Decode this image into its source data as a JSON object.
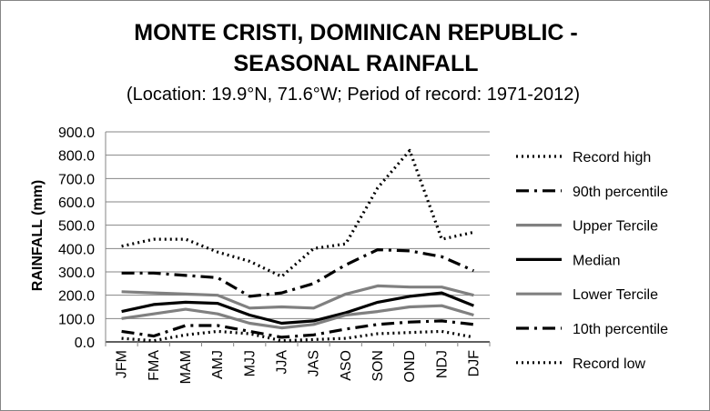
{
  "chart_data": {
    "type": "line",
    "title_line1": "MONTE CRISTI, DOMINICAN REPUBLIC -",
    "title_line2": "SEASONAL RAINFALL",
    "subtitle": "(Location: 19.9°N, 71.6°W; Period of record: 1971-2012)",
    "ylabel": "RAINFALL (mm)",
    "xlabel": "",
    "ylim": [
      0,
      900
    ],
    "yticks": [
      "0.0",
      "100.0",
      "200.0",
      "300.0",
      "400.0",
      "500.0",
      "600.0",
      "700.0",
      "800.0",
      "900.0"
    ],
    "categories": [
      "JFM",
      "FMA",
      "MAM",
      "AMJ",
      "MJJ",
      "JJA",
      "JAS",
      "ASO",
      "SON",
      "OND",
      "NDJ",
      "DJF"
    ],
    "grid": true,
    "legend_position": "right",
    "series": [
      {
        "name": "Record high",
        "style": "dotted",
        "color": "#000000",
        "values": [
          410,
          440,
          440,
          385,
          345,
          280,
          400,
          420,
          660,
          820,
          440,
          470
        ]
      },
      {
        "name": "90th percentile",
        "style": "dashdot",
        "color": "#000000",
        "values": [
          295,
          295,
          285,
          275,
          195,
          210,
          250,
          330,
          395,
          390,
          365,
          305
        ]
      },
      {
        "name": "Upper Tercile",
        "style": "solid",
        "color": "#808080",
        "values": [
          215,
          210,
          205,
          200,
          145,
          150,
          145,
          205,
          240,
          235,
          235,
          200
        ]
      },
      {
        "name": "Median",
        "style": "solid",
        "color": "#000000",
        "values": [
          130,
          160,
          170,
          165,
          115,
          80,
          90,
          125,
          170,
          195,
          210,
          155
        ]
      },
      {
        "name": "Lower Tercile",
        "style": "solid",
        "color": "#808080",
        "values": [
          100,
          120,
          140,
          120,
          80,
          60,
          75,
          115,
          130,
          150,
          155,
          115
        ]
      },
      {
        "name": "10th percentile",
        "style": "dashdot",
        "color": "#000000",
        "values": [
          45,
          25,
          70,
          70,
          45,
          20,
          30,
          55,
          75,
          85,
          90,
          75
        ]
      },
      {
        "name": "Record low",
        "style": "dotted",
        "color": "#000000",
        "values": [
          15,
          5,
          30,
          45,
          35,
          5,
          10,
          15,
          35,
          40,
          45,
          20
        ]
      }
    ]
  }
}
